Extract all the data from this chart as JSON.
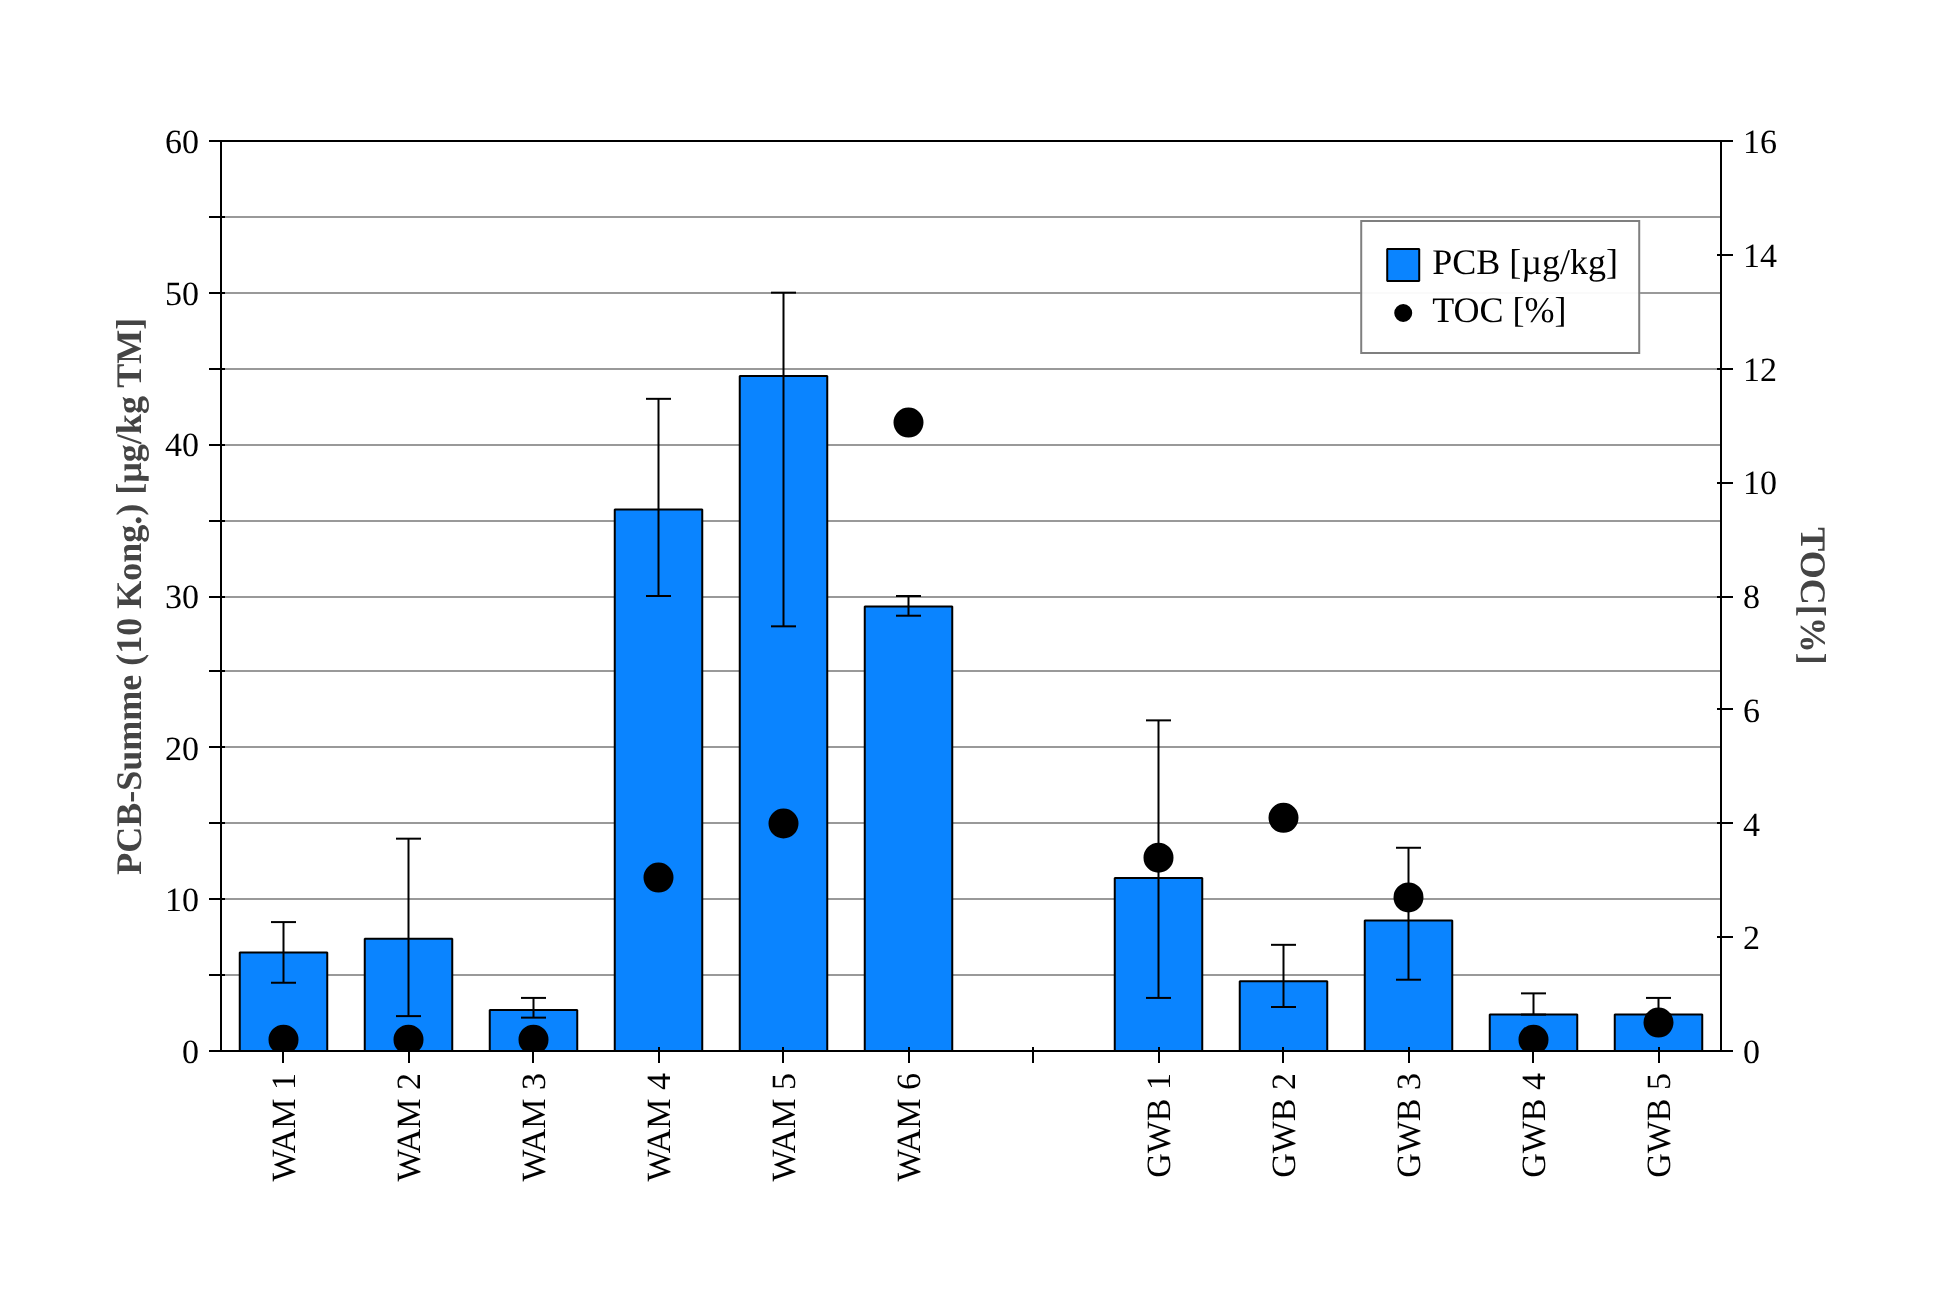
{
  "chart_data": {
    "type": "bar",
    "ylabel": "PCB-Summe (10 Kong.) [µg/kg TM]",
    "y2label": "TOC[%]",
    "categories": [
      "WAM 1",
      "WAM 2",
      "WAM 3",
      "WAM 4",
      "WAM 5",
      "WAM 6",
      null,
      "GWB 1",
      "GWB 2",
      "GWB 3",
      "GWB 4",
      "GWB 5"
    ],
    "series": [
      {
        "name": "PCB [µg/kg]",
        "color": "#0a84ff",
        "values": [
          6.5,
          7.4,
          2.7,
          35.7,
          44.5,
          29.3,
          null,
          11.4,
          4.6,
          8.6,
          2.4,
          2.4
        ],
        "errors": [
          [
            4.5,
            8.5
          ],
          [
            2.3,
            14
          ],
          [
            2.2,
            3.5
          ],
          [
            30,
            43
          ],
          [
            28,
            50
          ],
          [
            28.7,
            30
          ],
          null,
          [
            3.5,
            21.8
          ],
          [
            2.9,
            7
          ],
          [
            4.7,
            13.4
          ],
          [
            2.4,
            3.8
          ],
          [
            2.4,
            3.5
          ]
        ]
      },
      {
        "name": "TOC [%]",
        "type": "scatter",
        "axis": "y2",
        "color": "#000000",
        "marker": "circle",
        "values": [
          0.2,
          0.2,
          0.2,
          3.05,
          4.0,
          11.05,
          null,
          3.4,
          4.1,
          2.7,
          0.2,
          0.5
        ]
      }
    ],
    "ylim": [
      0,
      60
    ],
    "yticks": [
      0,
      {
        "value": 5,
        "label": null
      },
      10,
      {
        "value": 15,
        "label": null
      },
      20,
      {
        "value": 25,
        "label": null
      },
      30,
      {
        "value": 35,
        "label": null
      },
      40,
      {
        "value": 45,
        "label": null
      },
      50,
      {
        "value": 55,
        "label": null
      },
      60
    ],
    "y2lim": [
      0,
      16
    ],
    "y2ticks": [
      0,
      2,
      4,
      6,
      8,
      10,
      12,
      14,
      16
    ],
    "grid": "y",
    "legend": "top right"
  }
}
